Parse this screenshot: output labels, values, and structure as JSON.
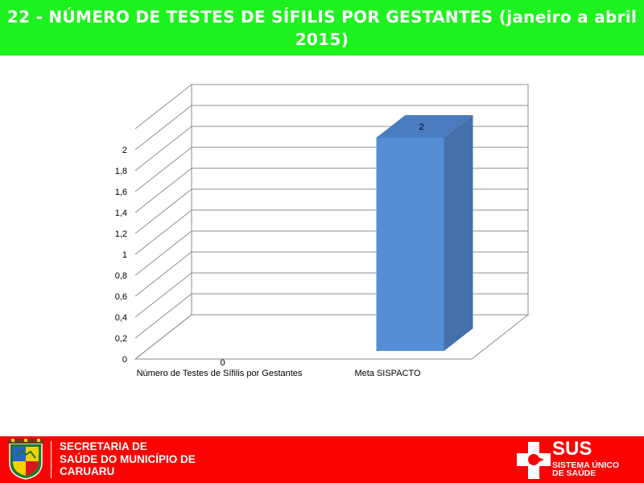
{
  "header": {
    "title": "22 - NÚMERO DE TESTES DE SÍFILIS POR GESTANTES (janeiro a abril 2015)"
  },
  "chart_data": {
    "type": "bar",
    "style": "3d",
    "categories": [
      "Número de Testes de Sífilis por Gestantes",
      "Meta SISPACTO"
    ],
    "values": [
      0,
      2
    ],
    "data_labels": [
      "0",
      "2"
    ],
    "ylim": [
      0,
      2
    ],
    "yticks": [
      "0",
      "0,2",
      "0,4",
      "0,6",
      "0,8",
      "1",
      "1,2",
      "1,4",
      "1,6",
      "1,8",
      "2"
    ],
    "grid": true,
    "legend": "none",
    "bar_color": "#558ed5"
  },
  "footer": {
    "org_lines": [
      "SECRETARIA DE",
      "SAÚDE DO MUNICÍPIO DE",
      "CARUARU"
    ],
    "sus_logo_text": "SUS",
    "sus_logo_subtitle_lines": [
      "SISTEMA ÚNICO",
      "DE SAÚDE"
    ]
  },
  "colors": {
    "title_bar": "#1ef21e",
    "footer": "#fb0303",
    "bar": "#558ed5"
  }
}
